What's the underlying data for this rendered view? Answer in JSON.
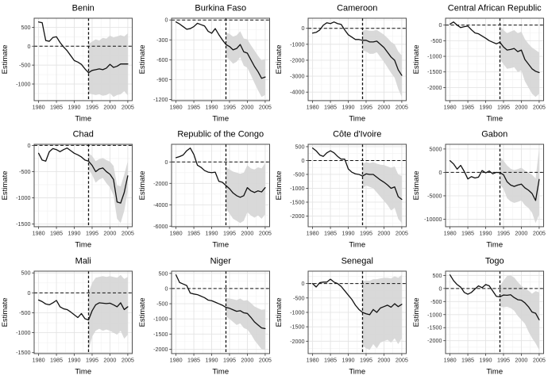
{
  "figure": {
    "x_label": "Time",
    "y_label": "Estimate",
    "x_ticks": [
      1980,
      1985,
      1990,
      1995,
      2000,
      2005
    ],
    "years": [
      1980,
      1981,
      1982,
      1983,
      1984,
      1985,
      1986,
      1987,
      1988,
      1989,
      1990,
      1991,
      1992,
      1993,
      1994,
      1995,
      1996,
      1997,
      1998,
      1999,
      2000,
      2001,
      2002,
      2003,
      2004,
      2005
    ],
    "band_years": [
      1994,
      1995,
      1996,
      1997,
      1998,
      1999,
      2000,
      2001,
      2002,
      2003,
      2004,
      2005
    ],
    "colors": {
      "background": "#ffffff",
      "panel_border": "#4d4d4d",
      "grid_major": "#e4e4e4",
      "grid_minor": "#f1f1f1",
      "line": "#111111",
      "band": "#d5d5d5",
      "dashed": "#111111",
      "tick_text": "#333333",
      "title_text": "#000000"
    }
  },
  "chart_data": [
    {
      "type": "line",
      "title": "Benin",
      "xlabel": "Time",
      "ylabel": "Estimate",
      "y_ticks": [
        500,
        0,
        -500,
        -1000
      ],
      "hline": 0,
      "vline": 1994,
      "grid": true,
      "legend": false,
      "y": [
        640,
        620,
        150,
        130,
        230,
        250,
        100,
        -20,
        -120,
        -250,
        -380,
        -420,
        -480,
        -600,
        -700,
        -640,
        -620,
        -600,
        -620,
        -580,
        -480,
        -560,
        -530,
        -470,
        -470,
        -470
      ],
      "band_lower": [
        -1250,
        -1270,
        -1290,
        -1270,
        -1310,
        -1290,
        -1240,
        -1340,
        -1290,
        -1270,
        -1190,
        -1300
      ],
      "band_upper": [
        60,
        120,
        180,
        150,
        220,
        200,
        280,
        230,
        260,
        290,
        260,
        340
      ]
    },
    {
      "type": "line",
      "title": "Burkina Faso",
      "xlabel": "Time",
      "ylabel": "Estimate",
      "y_ticks": [
        0,
        -300,
        -600,
        -900,
        -1200
      ],
      "hline": 0,
      "vline": 1994,
      "grid": true,
      "legend": false,
      "y": [
        -30,
        -60,
        -100,
        -140,
        -130,
        -100,
        -50,
        -70,
        -90,
        -170,
        -200,
        -130,
        -220,
        -300,
        -370,
        -400,
        -450,
        -430,
        -370,
        -480,
        -500,
        -600,
        -700,
        -780,
        -880,
        -860
      ],
      "band_lower": [
        -550,
        -600,
        -660,
        -630,
        -560,
        -690,
        -720,
        -830,
        -950,
        -1060,
        -1160,
        -1130
      ],
      "band_upper": [
        -190,
        -210,
        -250,
        -230,
        -170,
        -280,
        -290,
        -380,
        -460,
        -540,
        -610,
        -590
      ]
    },
    {
      "type": "line",
      "title": "Cameroon",
      "xlabel": "Time",
      "ylabel": "Estimate",
      "y_ticks": [
        0,
        -1000,
        -2000,
        -3000,
        -4000
      ],
      "hline": 0,
      "vline": 1994,
      "grid": true,
      "legend": false,
      "y": [
        -300,
        -250,
        -100,
        200,
        350,
        300,
        400,
        300,
        250,
        -100,
        -400,
        -550,
        -700,
        -700,
        -750,
        -750,
        -850,
        -850,
        -800,
        -1000,
        -1200,
        -1500,
        -1800,
        -2000,
        -2600,
        -2950
      ],
      "band_lower": [
        -1400,
        -1450,
        -1600,
        -1600,
        -1500,
        -1800,
        -2100,
        -2450,
        -2800,
        -3100,
        -3800,
        -4300
      ],
      "band_upper": [
        -150,
        -100,
        -150,
        -150,
        -100,
        -250,
        -400,
        -600,
        -850,
        -1000,
        -1450,
        -1700
      ]
    },
    {
      "type": "line",
      "title": "Central African Republic",
      "xlabel": "Time",
      "ylabel": "Estimate",
      "y_ticks": [
        0,
        -500,
        -1000,
        -1500,
        -2000
      ],
      "hline": 0,
      "vline": 1994,
      "grid": true,
      "legend": false,
      "y": [
        30,
        100,
        0,
        -80,
        -50,
        -30,
        -150,
        -250,
        -280,
        -350,
        -420,
        -500,
        -550,
        -600,
        -550,
        -700,
        -800,
        -780,
        -750,
        -850,
        -800,
        -1100,
        -1250,
        -1400,
        -1480,
        -1520
      ],
      "band_lower": [
        -1100,
        -1250,
        -1400,
        -1380,
        -1350,
        -1500,
        -1450,
        -1800,
        -2000,
        -2200,
        -2300,
        -2200
      ],
      "band_upper": [
        -30,
        -160,
        -260,
        -210,
        -160,
        -260,
        -210,
        -450,
        -600,
        -720,
        -800,
        -880
      ]
    },
    {
      "type": "line",
      "title": "Chad",
      "xlabel": "Time",
      "ylabel": "Estimate",
      "y_ticks": [
        0,
        -500,
        -1000,
        -1500
      ],
      "hline": 0,
      "vline": 1994,
      "grid": true,
      "legend": false,
      "y": [
        -150,
        -280,
        -300,
        -120,
        -60,
        -80,
        -120,
        -80,
        -50,
        -100,
        -150,
        -180,
        -220,
        -280,
        -300,
        -380,
        -500,
        -450,
        -430,
        -500,
        -550,
        -650,
        -1080,
        -1100,
        -900,
        -580
      ],
      "band_lower": [
        -460,
        -560,
        -710,
        -650,
        -620,
        -720,
        -800,
        -950,
        -1400,
        -1480,
        -1250,
        -860
      ],
      "band_upper": [
        -150,
        -200,
        -300,
        -260,
        -240,
        -280,
        -310,
        -390,
        -760,
        -780,
        -560,
        -300
      ]
    },
    {
      "type": "line",
      "title": "Republic of the Congo",
      "xlabel": "Time",
      "ylabel": "Estimate",
      "y_ticks": [
        0,
        -2000,
        -4000,
        -6000
      ],
      "hline": 0,
      "vline": 1994,
      "grid": true,
      "legend": false,
      "y": [
        400,
        500,
        650,
        1050,
        1300,
        700,
        -300,
        -500,
        -800,
        -950,
        -1000,
        -950,
        -1800,
        -1900,
        -2200,
        -2500,
        -2900,
        -3150,
        -3300,
        -3150,
        -2400,
        -2700,
        -2850,
        -2700,
        -2800,
        -2400
      ],
      "band_lower": [
        -4400,
        -4800,
        -5300,
        -5500,
        -5700,
        -5500,
        -4700,
        -5000,
        -5200,
        -5000,
        -5300,
        -4900
      ],
      "band_upper": [
        -500,
        -700,
        -900,
        -1000,
        -1100,
        -1000,
        -300,
        -600,
        -700,
        -500,
        -600,
        -100
      ]
    },
    {
      "type": "line",
      "title": "Côte d'Ivoire",
      "xlabel": "Time",
      "ylabel": "Estimate",
      "y_ticks": [
        500,
        0,
        -500,
        -1000,
        -1500,
        -2000
      ],
      "hline": 0,
      "vline": 1994,
      "grid": true,
      "legend": false,
      "y": [
        450,
        350,
        200,
        150,
        280,
        350,
        280,
        150,
        50,
        50,
        -300,
        -420,
        -480,
        -500,
        -560,
        -480,
        -500,
        -500,
        -600,
        -700,
        -780,
        -880,
        -1000,
        -950,
        -1300,
        -1400
      ],
      "band_lower": [
        -1000,
        -900,
        -950,
        -1000,
        -1150,
        -1300,
        -1450,
        -1600,
        -1800,
        -1700,
        -2100,
        -2250
      ],
      "band_upper": [
        -120,
        -60,
        -90,
        -60,
        -110,
        -150,
        -160,
        -210,
        -260,
        -210,
        -500,
        -560
      ]
    },
    {
      "type": "line",
      "title": "Gabon",
      "xlabel": "Time",
      "ylabel": "Estimate",
      "y_ticks": [
        5000,
        0,
        -5000,
        -10000
      ],
      "hline": 0,
      "vline": 1994,
      "grid": true,
      "legend": false,
      "y": [
        2500,
        1800,
        700,
        1500,
        200,
        -1400,
        -900,
        -1200,
        -1000,
        400,
        -100,
        300,
        -300,
        0,
        -50,
        -500,
        -2000,
        -2700,
        -3000,
        -2700,
        -2500,
        -3300,
        -3800,
        -4500,
        -6000,
        -1500
      ],
      "band_lower": [
        -2600,
        -3500,
        -5500,
        -6200,
        -6500,
        -6300,
        -6000,
        -7000,
        -7600,
        -8600,
        -10800,
        -9000
      ],
      "band_upper": [
        3200,
        2500,
        1500,
        800,
        500,
        700,
        1000,
        400,
        -100,
        -500,
        -1300,
        5200
      ]
    },
    {
      "type": "line",
      "title": "Mali",
      "xlabel": "Time",
      "ylabel": "Estimate",
      "y_ticks": [
        500,
        0,
        -500,
        -1000,
        -1500
      ],
      "hline": 0,
      "vline": 1994,
      "grid": true,
      "legend": false,
      "y": [
        -180,
        -220,
        -280,
        -300,
        -250,
        -190,
        -350,
        -400,
        -420,
        -480,
        -550,
        -620,
        -520,
        -650,
        -680,
        -450,
        -300,
        -250,
        -260,
        -270,
        -260,
        -300,
        -350,
        -250,
        -420,
        -350
      ],
      "band_lower": [
        -1430,
        -1100,
        -950,
        -900,
        -950,
        -920,
        -950,
        -1000,
        -1050,
        -950,
        -1150,
        -1050
      ],
      "band_upper": [
        0,
        250,
        380,
        400,
        420,
        400,
        420,
        400,
        380,
        450,
        350,
        400
      ]
    },
    {
      "type": "line",
      "title": "Niger",
      "xlabel": "Time",
      "ylabel": "Estimate",
      "y_ticks": [
        500,
        0,
        -500,
        -1000,
        -1500,
        -2000
      ],
      "hline": 0,
      "vline": 1994,
      "grid": true,
      "legend": false,
      "y": [
        450,
        200,
        150,
        100,
        -150,
        -180,
        -200,
        -250,
        -300,
        -380,
        -400,
        -450,
        -500,
        -550,
        -620,
        -650,
        -700,
        -750,
        -730,
        -800,
        -820,
        -950,
        -1100,
        -1200,
        -1300,
        -1320
      ],
      "band_lower": [
        -920,
        -1000,
        -1100,
        -1200,
        -1150,
        -1300,
        -1350,
        -1500,
        -1700,
        -1850,
        -2000,
        -2020
      ],
      "band_upper": [
        -310,
        -330,
        -350,
        -380,
        -330,
        -400,
        -380,
        -480,
        -590,
        -650,
        -700,
        -680
      ]
    },
    {
      "type": "line",
      "title": "Senegal",
      "xlabel": "Time",
      "ylabel": "Estimate",
      "y_ticks": [
        0,
        -500,
        -1000,
        -1500,
        -2000
      ],
      "hline": 0,
      "vline": 1994,
      "grid": true,
      "legend": false,
      "y": [
        0,
        -120,
        30,
        50,
        50,
        150,
        50,
        0,
        -100,
        -250,
        -400,
        -550,
        -750,
        -900,
        -1000,
        -1050,
        -1080,
        -900,
        -1000,
        -850,
        -800,
        -750,
        -820,
        -700,
        -800,
        -720
      ],
      "band_lower": [
        -2150,
        -2250,
        -2300,
        -2100,
        -2250,
        -2050,
        -2000,
        -1950,
        -2050,
        -1900,
        -2100,
        -1900
      ],
      "band_upper": [
        80,
        100,
        100,
        150,
        150,
        180,
        200,
        200,
        180,
        250,
        200,
        300
      ]
    },
    {
      "type": "line",
      "title": "Togo",
      "xlabel": "Time",
      "ylabel": "Estimate",
      "y_ticks": [
        500,
        0,
        -500,
        -1000,
        -1500,
        -2000
      ],
      "hline": 0,
      "vline": 1994,
      "grid": true,
      "legend": false,
      "y": [
        520,
        300,
        150,
        50,
        -150,
        -220,
        -150,
        -20,
        100,
        30,
        150,
        100,
        -100,
        -300,
        -320,
        -250,
        -260,
        -240,
        -350,
        -430,
        -450,
        -550,
        -700,
        -900,
        -950,
        -1200
      ],
      "band_lower": [
        -700,
        -720,
        -700,
        -750,
        -850,
        -1050,
        -1200,
        -1350,
        -1650,
        -1900,
        -2100,
        -2350
      ],
      "band_upper": [
        100,
        300,
        480,
        500,
        420,
        250,
        100,
        0,
        -80,
        -200,
        -100,
        -150
      ]
    }
  ]
}
